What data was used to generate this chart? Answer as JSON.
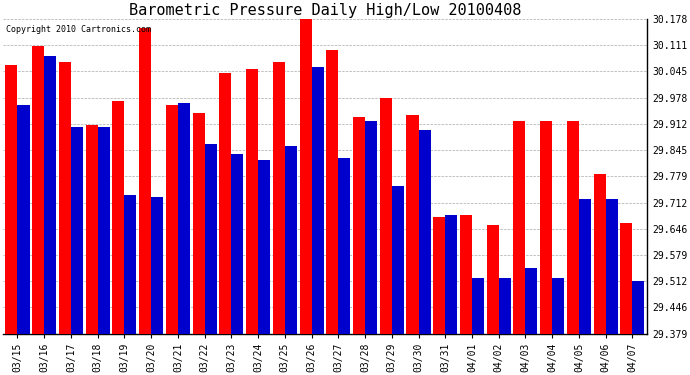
{
  "title": "Barometric Pressure Daily High/Low 20100408",
  "copyright_text": "Copyright 2010 Cartronics.com",
  "dates": [
    "03/15",
    "03/16",
    "03/17",
    "03/18",
    "03/19",
    "03/20",
    "03/21",
    "03/22",
    "03/23",
    "03/24",
    "03/25",
    "03/26",
    "03/27",
    "03/28",
    "03/29",
    "03/30",
    "03/31",
    "04/01",
    "04/02",
    "04/03",
    "04/04",
    "04/05",
    "04/06",
    "04/07"
  ],
  "highs": [
    30.06,
    30.11,
    30.07,
    29.91,
    29.97,
    30.155,
    29.96,
    29.94,
    30.04,
    30.05,
    30.07,
    30.178,
    30.1,
    29.93,
    29.978,
    29.935,
    29.675,
    29.68,
    29.655,
    29.92,
    29.92,
    29.92,
    29.785,
    29.66
  ],
  "lows": [
    29.96,
    30.085,
    29.905,
    29.905,
    29.73,
    29.725,
    29.965,
    29.86,
    29.835,
    29.82,
    29.855,
    30.055,
    29.825,
    29.92,
    29.755,
    29.895,
    29.68,
    29.52,
    29.52,
    29.545,
    29.52,
    29.72,
    29.72,
    29.512
  ],
  "high_color": "#ff0000",
  "low_color": "#0000cc",
  "ylim_min": 29.379,
  "ylim_max": 30.178,
  "yticks": [
    29.379,
    29.446,
    29.512,
    29.579,
    29.646,
    29.712,
    29.779,
    29.845,
    29.912,
    29.978,
    30.045,
    30.111,
    30.178
  ],
  "bg_color": "#ffffff",
  "grid_color": "#aaaaaa",
  "title_fontsize": 11,
  "tick_fontsize": 7,
  "bar_width": 0.45,
  "fig_width": 6.9,
  "fig_height": 3.75,
  "dpi": 100
}
